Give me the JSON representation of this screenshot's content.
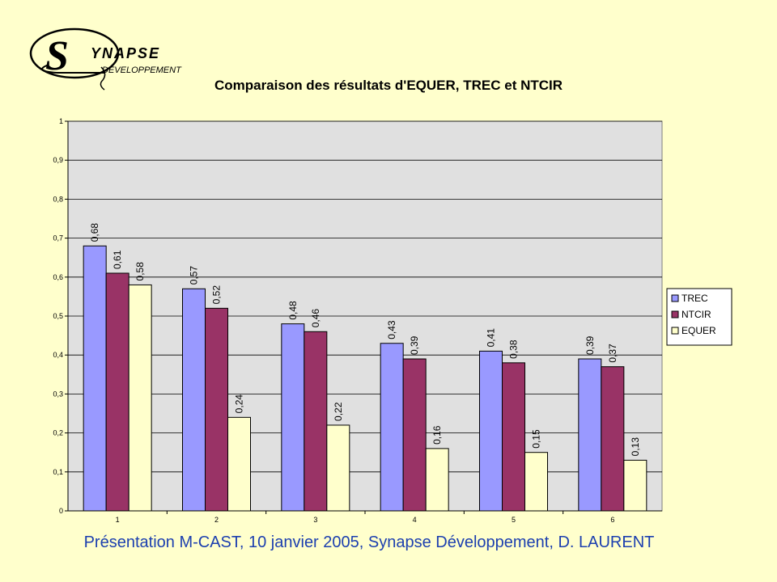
{
  "logo": {
    "text_main": "YNAPSE",
    "text_s": "S",
    "text_sub": "DEVELOPPEMENT"
  },
  "footer": "Présentation M-CAST, 10 janvier 2005, Synapse Développement,  D. LAURENT",
  "chart_data": {
    "type": "bar",
    "title": "Comparaison des résultats d'EQUER, TREC et NTCIR",
    "xlabel": "",
    "ylabel": "",
    "categories": [
      "1",
      "2",
      "3",
      "4",
      "5",
      "6"
    ],
    "series": [
      {
        "name": "TREC",
        "color": "#9999FF",
        "values": [
          0.68,
          0.57,
          0.48,
          0.43,
          0.41,
          0.39
        ],
        "labels": [
          "0,68",
          "0,57",
          "0,48",
          "0,43",
          "0,41",
          "0,39"
        ]
      },
      {
        "name": "NTCIR",
        "color": "#993366",
        "values": [
          0.61,
          0.52,
          0.46,
          0.39,
          0.38,
          0.37
        ],
        "labels": [
          "0,61",
          "0,52",
          "0,46",
          "0,39",
          "0,38",
          "0,37"
        ]
      },
      {
        "name": "EQUER",
        "color": "#FFFFCC",
        "values": [
          0.58,
          0.24,
          0.22,
          0.16,
          0.15,
          0.13
        ],
        "labels": [
          "0,58",
          "0,24",
          "0,22",
          "0,16",
          "0,15",
          "0,13"
        ]
      }
    ],
    "ylim": [
      0,
      1
    ],
    "yticks": [
      "0",
      "0,1",
      "0,2",
      "0,3",
      "0,4",
      "0,5",
      "0,6",
      "0,7",
      "0,8",
      "0,9",
      "1"
    ],
    "grid": true,
    "legend_position": "right",
    "plot_background": "#E0E0E0"
  }
}
